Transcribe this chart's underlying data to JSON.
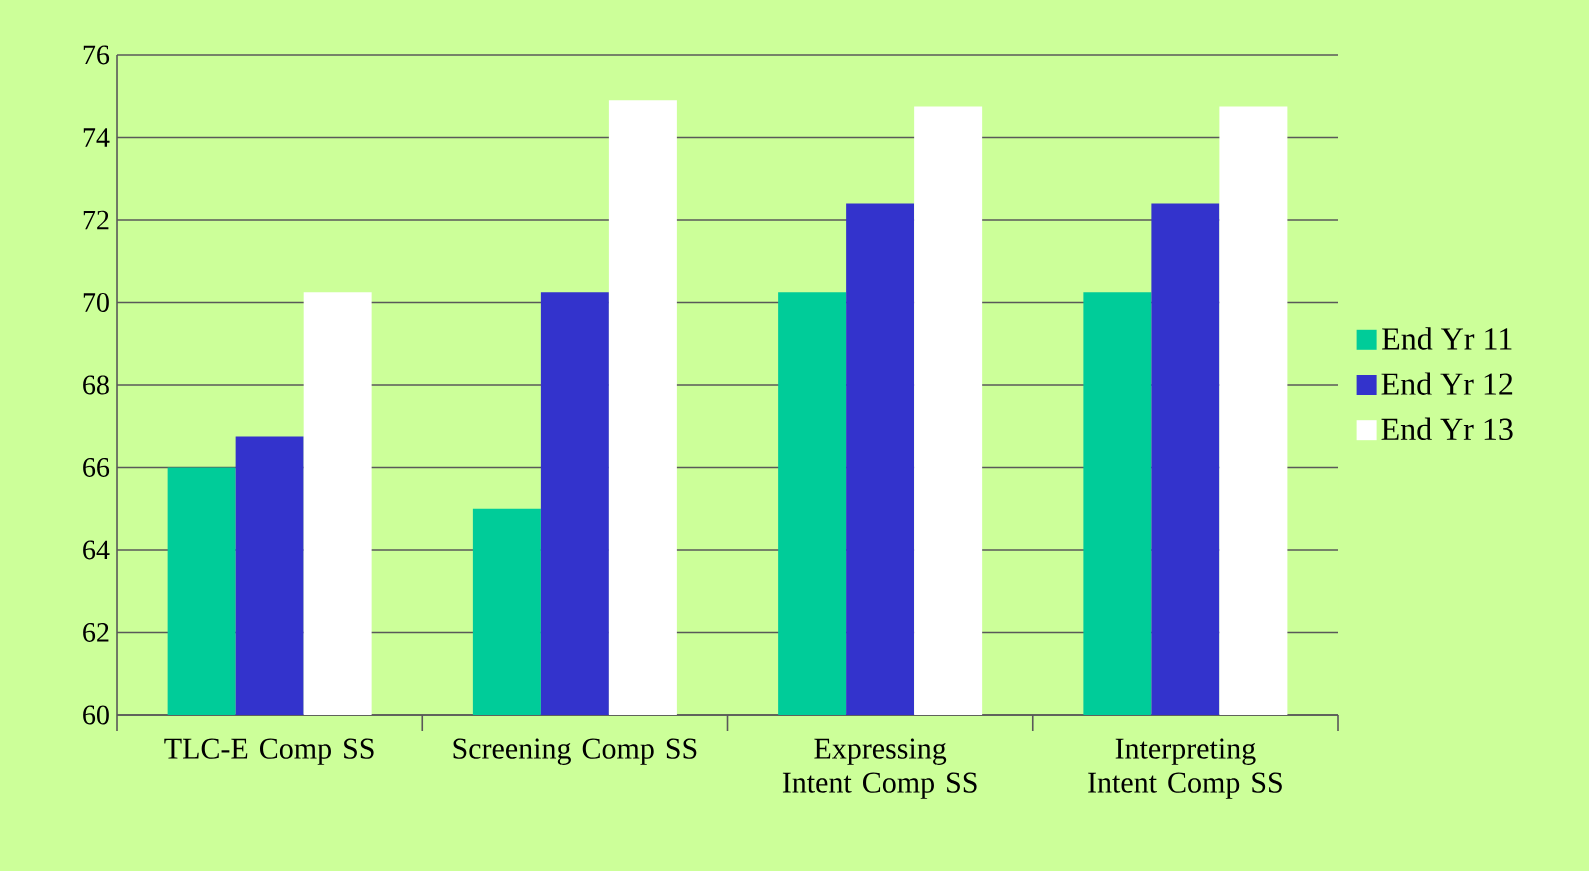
{
  "chart_data": {
    "type": "bar",
    "categories": [
      "TLC-E Comp SS",
      "Screening Comp SS",
      "Expressing Intent Comp SS",
      "Interpreting Intent Comp SS"
    ],
    "series": [
      {
        "name": "End Yr 11",
        "color": "#00cc99",
        "values": [
          66,
          65,
          70.25,
          70.25
        ]
      },
      {
        "name": "End Yr 12",
        "color": "#3333cc",
        "values": [
          66.75,
          70.25,
          72.4,
          72.4
        ]
      },
      {
        "name": "End Yr 13",
        "color": "#ffffff",
        "values": [
          70.25,
          74.9,
          74.75,
          74.75
        ]
      }
    ],
    "ylim": [
      60,
      76
    ],
    "yticks": [
      60,
      62,
      64,
      66,
      68,
      70,
      72,
      74,
      76
    ],
    "grid": "y",
    "legend": "right"
  }
}
